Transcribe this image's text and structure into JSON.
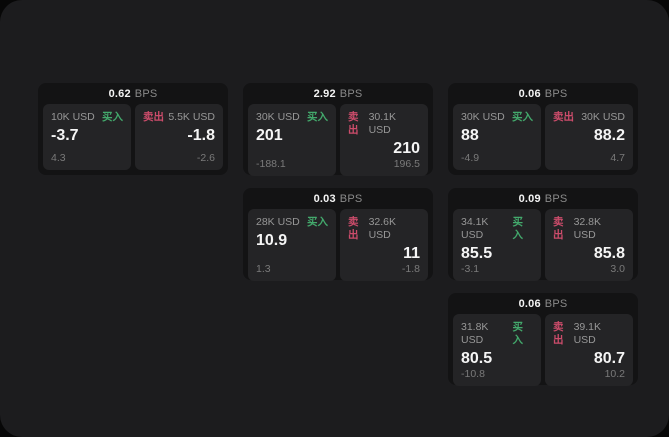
{
  "labels": {
    "bps_unit": "BPS",
    "buy": "买入",
    "sell": "卖出"
  },
  "colors": {
    "panel_bg": "#1c1c1e",
    "card_bg": "#131314",
    "cell_bg": "#242426",
    "buy_accent": "#43a96c",
    "sell_accent": "#cc4c6b"
  },
  "cards": [
    {
      "bps": "0.62",
      "buy": {
        "size": "10K USD",
        "price": "-3.7",
        "skew": "4.3"
      },
      "sell": {
        "size": "5.5K USD",
        "price": "-1.8",
        "skew": "-2.6"
      }
    },
    {
      "bps": "2.92",
      "buy": {
        "size": "30K USD",
        "price": "201",
        "skew": "-188.1"
      },
      "sell": {
        "size": "30.1K USD",
        "price": "210",
        "skew": "196.5"
      }
    },
    {
      "bps": "0.06",
      "buy": {
        "size": "30K USD",
        "price": "88",
        "skew": "-4.9"
      },
      "sell": {
        "size": "30K USD",
        "price": "88.2",
        "skew": "4.7"
      }
    },
    {
      "bps": "0.03",
      "buy": {
        "size": "28K USD",
        "price": "10.9",
        "skew": "1.3"
      },
      "sell": {
        "size": "32.6K USD",
        "price": "11",
        "skew": "-1.8"
      }
    },
    {
      "bps": "0.09",
      "buy": {
        "size": "34.1K USD",
        "price": "85.5",
        "skew": "-3.1"
      },
      "sell": {
        "size": "32.8K USD",
        "price": "85.8",
        "skew": "3.0"
      }
    },
    {
      "bps": "0.06",
      "buy": {
        "size": "31.8K USD",
        "price": "80.5",
        "skew": "-10.8"
      },
      "sell": {
        "size": "39.1K USD",
        "price": "80.7",
        "skew": "10.2"
      }
    }
  ]
}
